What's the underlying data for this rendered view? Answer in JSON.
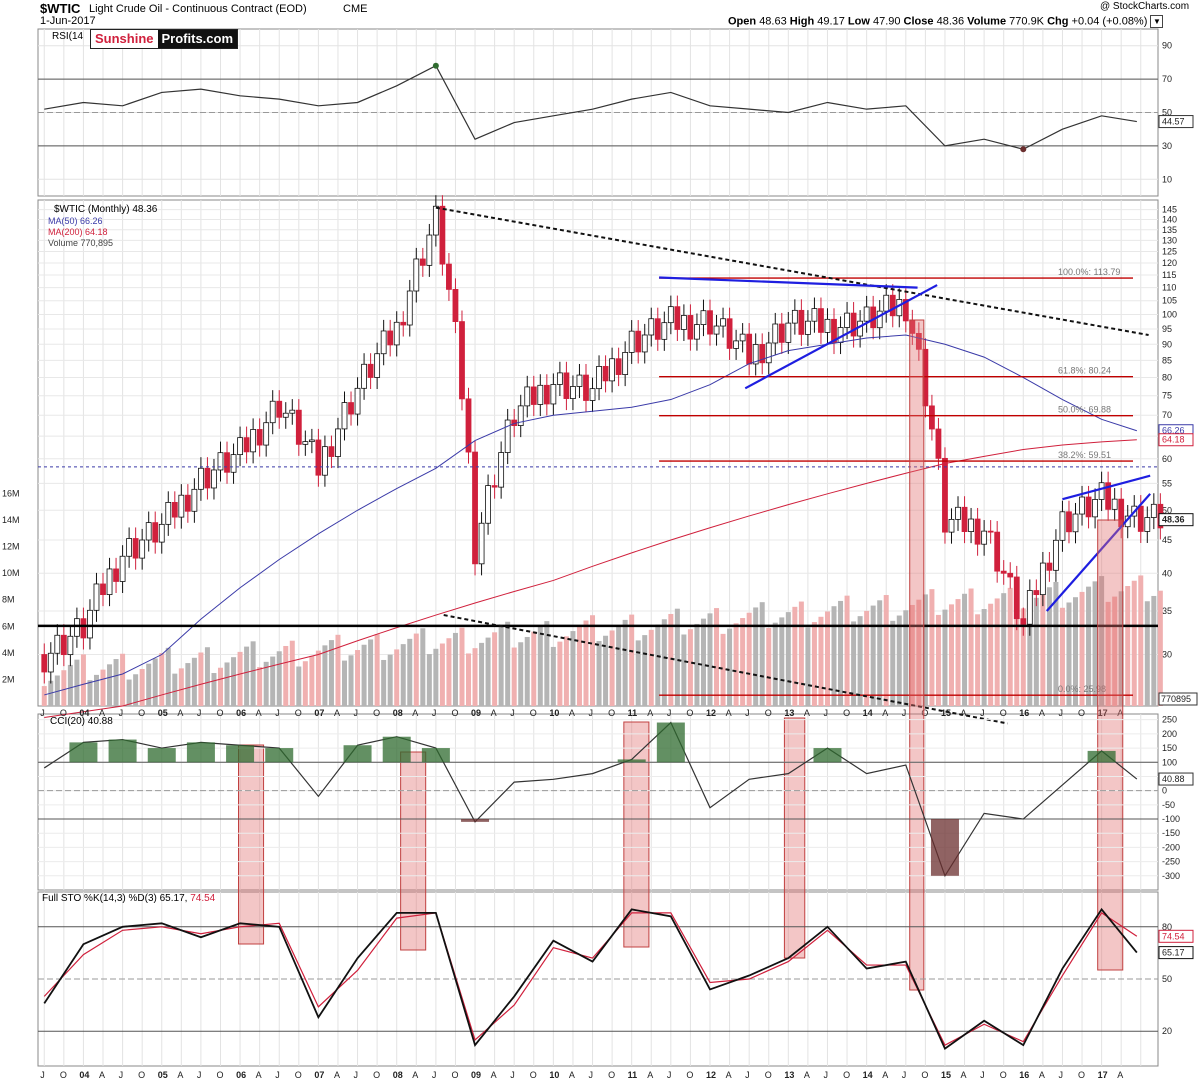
{
  "header": {
    "symbol": "$WTIC",
    "name": "Light Crude Oil - Continuous Contract (EOD)",
    "exchange": "CME",
    "date": "1-Jun-2017",
    "copyright": "@ StockCharts.com",
    "open_label": "Open",
    "open": "48.63",
    "high_label": "High",
    "high": "49.17",
    "low_label": "Low",
    "low": "47.90",
    "close_label": "Close",
    "close": "48.36",
    "volume_label": "Volume",
    "volume": "770.9K",
    "chg_label": "Chg",
    "chg": "+0.04 (+0.08%)"
  },
  "logo": {
    "part1": "Sunshine",
    "part2": "Profits.com"
  },
  "legend": {
    "rsi": "RSI(14",
    "main": "$WTIC (Monthly) 48.36",
    "ma50": "MA(50) 66.26",
    "ma200": "MA(200) 64.18",
    "volume": "Volume 770,895",
    "cci": "CCI(20) 40.88",
    "sto_k": "Full STO %K(14,3) %D(3) 65.17,",
    "sto_d": "74.54"
  },
  "colors": {
    "up": "#ffffff",
    "down": "#d0203c",
    "ma50": "#3a3aa8",
    "ma200": "#d0203c",
    "fib": "#c00000",
    "trend": "#1e1ee0",
    "volume_up": "#b5b5b5",
    "volume_down": "#f0b0b0",
    "overbought_fill": "#2f6b2f",
    "oversold_fill": "#6b2f2f",
    "highlight": "#e07070"
  },
  "chart_data": [
    {
      "type": "line",
      "title": "RSI(14)",
      "ylim": [
        0,
        100
      ],
      "yticks": [
        10,
        30,
        50,
        70,
        90
      ],
      "levels": [
        30,
        50,
        70
      ],
      "last_value_label": "44.57",
      "x": [
        2003.5,
        2004.0,
        2004.5,
        2005.0,
        2005.5,
        2006.0,
        2006.5,
        2007.0,
        2007.5,
        2008.0,
        2008.5,
        2009.0,
        2009.5,
        2010.0,
        2010.5,
        2011.0,
        2011.5,
        2012.0,
        2012.5,
        2013.0,
        2013.5,
        2014.0,
        2014.5,
        2015.0,
        2015.5,
        2016.0,
        2016.5,
        2017.0,
        2017.45
      ],
      "values": [
        52,
        56,
        54,
        62,
        64,
        60,
        58,
        54,
        56,
        66,
        78,
        34,
        44,
        48,
        52,
        58,
        62,
        54,
        52,
        50,
        56,
        52,
        54,
        30,
        34,
        28,
        40,
        48,
        44.57
      ]
    },
    {
      "type": "candlestick",
      "title": "$WTIC (Monthly) 48.36",
      "scale": "log",
      "ylim": [
        25,
        150
      ],
      "yticks": [
        30,
        35,
        40,
        45,
        50,
        55,
        60,
        65,
        70,
        75,
        80,
        85,
        90,
        95,
        100,
        105,
        110,
        115,
        120,
        125,
        130,
        135,
        140,
        145
      ],
      "x_labels": [
        "J",
        "O",
        "04",
        "A",
        "J",
        "O",
        "05",
        "A",
        "J",
        "O",
        "06",
        "A",
        "J",
        "O",
        "07",
        "A",
        "J",
        "O",
        "08",
        "A",
        "J",
        "O",
        "09",
        "A",
        "J",
        "O",
        "10",
        "A",
        "J",
        "O",
        "11",
        "A",
        "J",
        "O",
        "12",
        "A",
        "J",
        "O",
        "13",
        "A",
        "J",
        "O",
        "14",
        "A",
        "J",
        "O",
        "15",
        "A",
        "J",
        "O",
        "16",
        "A",
        "J",
        "O",
        "17",
        "A"
      ],
      "x_label_start": 2003.5,
      "x_label_step": 0.25,
      "x": [
        2003.5,
        2004.0,
        2004.5,
        2005.0,
        2005.5,
        2006.0,
        2006.5,
        2007.0,
        2007.5,
        2008.0,
        2008.5,
        2009.0,
        2009.5,
        2010.0,
        2010.5,
        2011.0,
        2011.5,
        2012.0,
        2012.5,
        2013.0,
        2013.5,
        2014.0,
        2014.5,
        2015.0,
        2015.5,
        2016.0,
        2016.5,
        2017.0,
        2017.45
      ],
      "close": [
        30,
        33,
        43,
        47,
        56,
        61,
        73,
        58,
        77,
        95,
        140,
        44,
        70,
        79,
        76,
        91,
        97,
        98,
        86,
        97,
        96,
        98,
        104,
        48,
        47,
        33,
        48,
        52,
        48.36
      ],
      "ma50_label": "66.26",
      "ma50": [
        26,
        27,
        28,
        30,
        34,
        38,
        42,
        46,
        50,
        54,
        58,
        64,
        68,
        70,
        71,
        72,
        74,
        78,
        84,
        88,
        90,
        92,
        93,
        90,
        86,
        80,
        74,
        69,
        66.26
      ],
      "ma200_label": "64.18",
      "ma200": [
        24,
        24.5,
        25,
        26,
        27,
        28,
        29,
        30,
        31.5,
        33,
        34.5,
        36,
        37.5,
        39,
        41,
        43,
        45,
        47,
        49,
        51,
        53,
        55,
        57,
        59,
        60.5,
        62,
        63,
        63.7,
        64.18
      ],
      "volume_label": "770895",
      "volume_ylim": [
        0,
        16000000
      ],
      "volume_ticks": [
        "2M",
        "4M",
        "6M",
        "8M",
        "10M",
        "12M",
        "14M",
        "16M"
      ],
      "volume_tick_values": [
        2000000,
        4000000,
        6000000,
        8000000,
        10000000,
        12000000,
        14000000,
        16000000
      ],
      "annotations": [
        {
          "label": "100.0%: 113.79",
          "value": 113.79,
          "x_start": 2011.35
        },
        {
          "label": "61.8%: 80.24",
          "value": 80.24,
          "x_start": 2011.35
        },
        {
          "label": "50.0%: 69.88",
          "value": 69.88,
          "x_start": 2011.35
        },
        {
          "label": "38.2%: 59.51",
          "value": 59.51,
          "x_start": 2011.35
        },
        {
          "label": "0.0%: 25.98",
          "value": 25.98,
          "x_start": 2011.35
        }
      ],
      "support_line": 33.2,
      "dashed_ref": 58.3
    },
    {
      "type": "line",
      "title": "CCI(20)",
      "ylim": [
        -350,
        270
      ],
      "yticks": [
        250,
        200,
        150,
        100,
        50,
        0,
        -50,
        -100,
        -150,
        -200,
        -250,
        -300
      ],
      "levels": [
        -100,
        0,
        100
      ],
      "last_value_label": "40.88",
      "x": [
        2003.5,
        2004.0,
        2004.5,
        2005.0,
        2005.5,
        2006.0,
        2006.5,
        2007.0,
        2007.5,
        2008.0,
        2008.5,
        2009.0,
        2009.5,
        2010.0,
        2010.5,
        2011.0,
        2011.5,
        2012.0,
        2012.5,
        2013.0,
        2013.5,
        2014.0,
        2014.5,
        2015.0,
        2015.5,
        2016.0,
        2016.5,
        2017.0,
        2017.45
      ],
      "values": [
        80,
        170,
        180,
        150,
        170,
        160,
        150,
        -20,
        160,
        190,
        150,
        -110,
        30,
        40,
        60,
        110,
        240,
        -60,
        40,
        60,
        150,
        60,
        90,
        -300,
        -80,
        -100,
        20,
        140,
        40.88
      ]
    },
    {
      "type": "line",
      "title": "Full STO %K(14,3) %D(3)",
      "ylim": [
        0,
        100
      ],
      "yticks": [
        20,
        50,
        80
      ],
      "last_value_k": "65.17",
      "last_value_d": "74.54",
      "x": [
        2003.5,
        2004.0,
        2004.5,
        2005.0,
        2005.5,
        2006.0,
        2006.5,
        2007.0,
        2007.5,
        2008.0,
        2008.5,
        2009.0,
        2009.5,
        2010.0,
        2010.5,
        2011.0,
        2011.5,
        2012.0,
        2012.5,
        2013.0,
        2013.5,
        2014.0,
        2014.5,
        2015.0,
        2015.5,
        2016.0,
        2016.5,
        2017.0,
        2017.45
      ],
      "k": [
        36,
        70,
        80,
        82,
        74,
        82,
        80,
        28,
        62,
        88,
        88,
        12,
        40,
        72,
        60,
        90,
        86,
        44,
        52,
        62,
        80,
        56,
        60,
        10,
        26,
        12,
        56,
        90,
        65.17
      ],
      "d": [
        40,
        64,
        78,
        80,
        76,
        80,
        82,
        34,
        55,
        85,
        88,
        15,
        35,
        68,
        62,
        88,
        88,
        48,
        50,
        60,
        78,
        58,
        58,
        12,
        24,
        14,
        52,
        88,
        74.54
      ]
    }
  ]
}
